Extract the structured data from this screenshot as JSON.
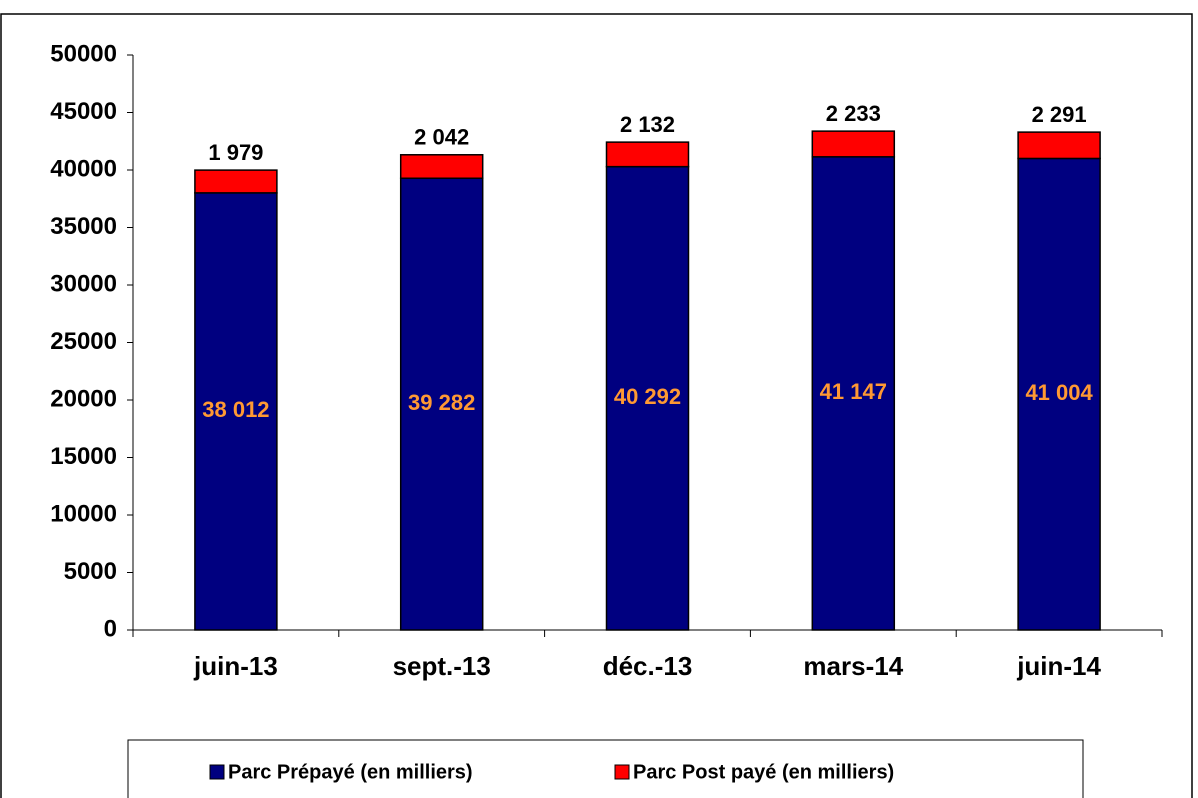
{
  "chart_data": {
    "type": "stacked_bar",
    "categories": [
      "juin-13",
      "sept.-13",
      "déc.-13",
      "mars-14",
      "juin-14"
    ],
    "series": [
      {
        "name": "Parc Prépayé (en milliers)",
        "color": "#000080",
        "label_color": "#ff9933",
        "values": [
          38012,
          39282,
          40292,
          41147,
          41004
        ],
        "value_labels": [
          "38 012",
          "39 282",
          "40 292",
          "41 147",
          "41 004"
        ]
      },
      {
        "name": "Parc Post payé (en milliers)",
        "color": "#ff0000",
        "label_color": "#000000",
        "values": [
          1979,
          2042,
          2132,
          2233,
          2291
        ],
        "value_labels": [
          "1 979",
          "2 042",
          "2 132",
          "2 233",
          "2 291"
        ]
      }
    ],
    "ylim": [
      0,
      50000
    ],
    "yticks": [
      0,
      5000,
      10000,
      15000,
      20000,
      25000,
      30000,
      35000,
      40000,
      45000,
      50000
    ],
    "grid": false,
    "legend": "bottom"
  }
}
